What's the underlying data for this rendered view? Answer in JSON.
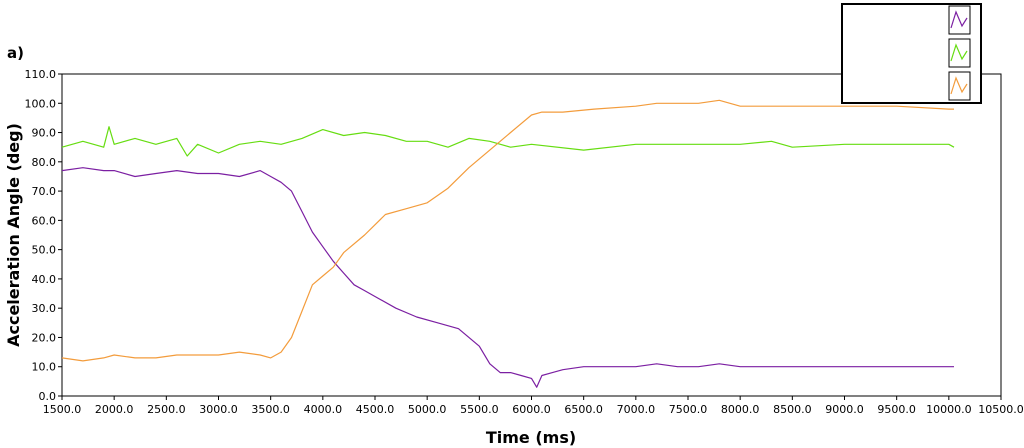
{
  "chart_data": {
    "type": "line",
    "panel_label": "a)",
    "title": "",
    "xlabel": "Time (ms)",
    "ylabel": "Acceleration Angle (deg)",
    "xlim": [
      1500,
      10500
    ],
    "ylim": [
      0,
      110
    ],
    "x_ticks": [
      "1500.0",
      "2000.0",
      "2500.0",
      "3000.0",
      "3500.0",
      "4000.0",
      "4500.0",
      "5000.0",
      "5500.0",
      "6000.0",
      "6500.0",
      "7000.0",
      "7500.0",
      "8000.0",
      "8500.0",
      "9000.0",
      "9500.0",
      "10000.0",
      "10500.0"
    ],
    "y_ticks": [
      "0.0",
      "10.0",
      "20.0",
      "30.0",
      "40.0",
      "50.0",
      "60.0",
      "70.0",
      "80.0",
      "90.0",
      "100.0",
      "110.0"
    ],
    "grid": false,
    "legend_position": "top-right",
    "series": [
      {
        "color": "#7b1fa2",
        "x": [
          1500,
          1700,
          1900,
          2000,
          2200,
          2400,
          2600,
          2800,
          3000,
          3200,
          3400,
          3500,
          3600,
          3700,
          3800,
          3900,
          4000,
          4100,
          4200,
          4300,
          4400,
          4500,
          4700,
          4900,
          5100,
          5300,
          5500,
          5600,
          5700,
          5800,
          5900,
          6000,
          6050,
          6100,
          6200,
          6300,
          6500,
          7000,
          7200,
          7400,
          7600,
          7800,
          8000,
          8200,
          8500,
          9000,
          9500,
          10000,
          10050
        ],
        "y": [
          77,
          78,
          77,
          77,
          75,
          76,
          77,
          76,
          76,
          75,
          77,
          75,
          73,
          70,
          63,
          56,
          51,
          46,
          42,
          38,
          36,
          34,
          30,
          27,
          25,
          23,
          17,
          11,
          8,
          8,
          7,
          6,
          3,
          7,
          8,
          9,
          10,
          10,
          11,
          10,
          10,
          11,
          10,
          10,
          10,
          10,
          10,
          10,
          10
        ]
      },
      {
        "color": "#66dd11",
        "x": [
          1500,
          1700,
          1900,
          1950,
          2000,
          2200,
          2400,
          2600,
          2700,
          2800,
          3000,
          3200,
          3400,
          3600,
          3800,
          4000,
          4200,
          4400,
          4600,
          4800,
          5000,
          5200,
          5400,
          5600,
          5800,
          6000,
          6500,
          7000,
          7500,
          8000,
          8300,
          8500,
          9000,
          9500,
          10000,
          10050
        ],
        "y": [
          85,
          87,
          85,
          92,
          86,
          88,
          86,
          88,
          82,
          86,
          83,
          86,
          87,
          86,
          88,
          91,
          89,
          90,
          89,
          87,
          87,
          85,
          88,
          87,
          85,
          86,
          84,
          86,
          86,
          86,
          87,
          85,
          86,
          86,
          86,
          85
        ]
      },
      {
        "color": "#f39c3c",
        "x": [
          1500,
          1700,
          1900,
          2000,
          2200,
          2400,
          2600,
          2800,
          3000,
          3200,
          3400,
          3500,
          3600,
          3700,
          3800,
          3900,
          4000,
          4100,
          4200,
          4400,
          4600,
          4800,
          5000,
          5200,
          5400,
          5600,
          5800,
          6000,
          6100,
          6300,
          6600,
          7000,
          7200,
          7400,
          7600,
          7800,
          8000,
          8500,
          9000,
          9500,
          10000,
          10050
        ],
        "y": [
          13,
          12,
          13,
          14,
          13,
          13,
          14,
          14,
          14,
          15,
          14,
          13,
          15,
          20,
          29,
          38,
          41,
          44,
          49,
          55,
          62,
          64,
          66,
          71,
          78,
          84,
          90,
          96,
          97,
          97,
          98,
          99,
          100,
          100,
          100,
          101,
          99,
          99,
          99,
          99,
          98,
          98
        ]
      }
    ]
  }
}
